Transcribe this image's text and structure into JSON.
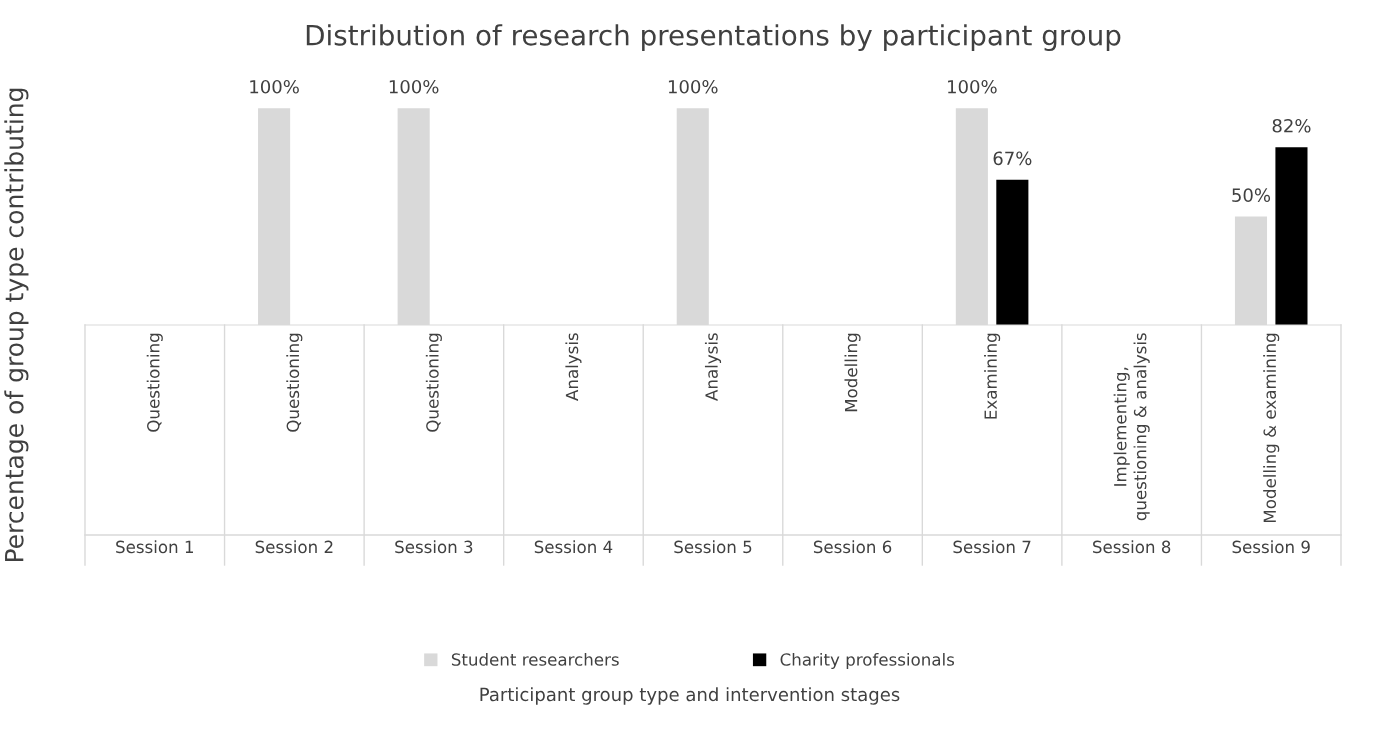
{
  "chart_data": {
    "type": "bar",
    "title": "Distribution of research presentations by participant group",
    "ylabel": "Percentage of group type contributing",
    "categories": [
      "Session 1",
      "Session 2",
      "Session 3",
      "Session 4",
      "Session 5",
      "Session 6",
      "Session 7",
      "Session 8",
      "Session 9"
    ],
    "annotations": [
      "Questioning",
      "Questioning",
      "Questioning",
      "Analysis",
      "Analysis",
      "Modelling",
      "Examining",
      "Implementing,\nquestioning & analysis",
      "Modelling & examining",
      "Participant group type and intervention stages"
    ],
    "series": [
      {
        "name": "Student researchers",
        "color": "#d9d9d9",
        "values": [
          null,
          100,
          100,
          null,
          100,
          null,
          100,
          null,
          50
        ],
        "value_labels": [
          null,
          "100%",
          "100%",
          null,
          "100%",
          null,
          "100%",
          null,
          "50%"
        ]
      },
      {
        "name": "Charity professionals",
        "color": "#000000",
        "values": [
          null,
          null,
          null,
          null,
          null,
          null,
          67,
          null,
          82
        ],
        "value_labels": [
          null,
          null,
          null,
          null,
          null,
          null,
          "67%",
          null,
          "82%"
        ]
      }
    ],
    "grid": false,
    "legend": "bottom"
  }
}
